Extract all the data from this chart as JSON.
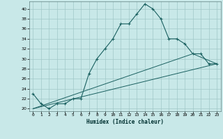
{
  "xlabel": "Humidex (Indice chaleur)",
  "ylabel": "",
  "bg_color": "#c8e8e8",
  "line_color": "#1a6060",
  "grid_color": "#a0c8c8",
  "xlim": [
    -0.5,
    23.5
  ],
  "ylim": [
    19.5,
    41.5
  ],
  "xticks": [
    0,
    1,
    2,
    3,
    4,
    5,
    6,
    7,
    8,
    9,
    10,
    11,
    12,
    13,
    14,
    15,
    16,
    17,
    18,
    19,
    20,
    21,
    22,
    23
  ],
  "yticks": [
    20,
    22,
    24,
    26,
    28,
    30,
    32,
    34,
    36,
    38,
    40
  ],
  "line1_x": [
    0,
    1,
    2,
    3,
    4,
    5,
    6,
    7,
    8,
    9,
    10,
    11,
    12,
    13,
    14,
    15,
    16,
    17,
    18,
    19,
    20,
    21,
    22,
    23
  ],
  "line1_y": [
    23,
    21,
    20,
    21,
    21,
    22,
    22,
    27,
    30,
    32,
    34,
    37,
    37,
    39,
    41,
    40,
    38,
    34,
    34,
    33,
    31,
    31,
    29,
    29
  ],
  "line2_x": [
    0,
    23
  ],
  "line2_y": [
    20,
    29
  ],
  "line3_x": [
    0,
    20,
    23
  ],
  "line3_y": [
    20,
    31,
    29
  ]
}
